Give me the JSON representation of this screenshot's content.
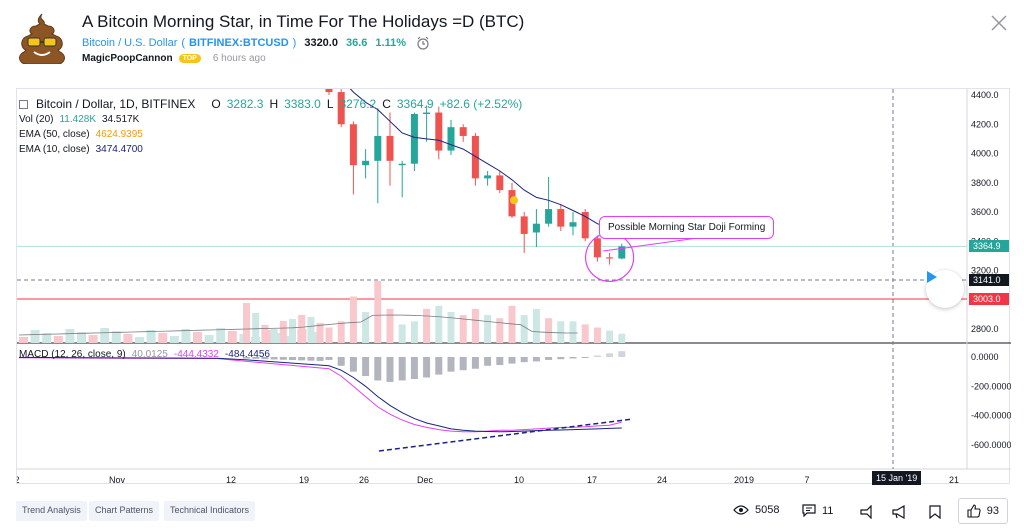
{
  "idea": {
    "title": "A Bitcoin Morning Star, in Time For The Holidays =D (BTC)",
    "symbol_name": "Bitcoin / U.S. Dollar",
    "symbol_ticker": "BITFINEX:BTCUSD",
    "symbol_open": "(",
    "symbol_close": ")",
    "price": "3320.0",
    "change": "36.6",
    "change_pct": "1.11%",
    "author": "MagicPoopCannon",
    "author_badge": "TOP",
    "published": "6 hours ago"
  },
  "legend": {
    "symbol": "Bitcoin / Dollar, 1D, BITFINEX",
    "o_label": "O",
    "o_value": "3282.3",
    "h_label": "H",
    "h_value": "3383.0",
    "l_label": "L",
    "l_value": "3276.2",
    "c_label": "C",
    "c_value": "3364.9",
    "change": "+82.6 (+2.52%)",
    "vol_label": "Vol (20)",
    "vol_v1": "11.428K",
    "vol_v2": "34.517K",
    "ema50_label": "EMA (50, close)",
    "ema50_value": "4624.9395",
    "ema10_label": "EMA (10, close)",
    "ema10_value": "3474.4700",
    "macd_label": "MACD (12, 26, close, 9)",
    "macd_v1": "40.0125",
    "macd_v2": "-444.4332",
    "macd_v3": "-484.4456"
  },
  "annotation": "Possible Morning Star Doji Forming",
  "price_tags": {
    "last": "3364.9",
    "dashed": "3141.0",
    "red": "3003.0"
  },
  "date_tag": "15 Jan '19",
  "chart_data": {
    "type": "candlestick",
    "price_axis_ticks": [
      4400,
      4200,
      4000,
      3800,
      3600,
      3400,
      3200,
      2800
    ],
    "price_axis_labels": [
      "4400.0",
      "4200.0",
      "4000.0",
      "3800.0",
      "3600.0",
      "3400.0",
      "3200.0",
      "2800.0"
    ],
    "macd_axis_ticks": [
      0,
      -200,
      -400,
      -600
    ],
    "macd_axis_labels": [
      "0.0000",
      "-200.0000",
      "-400.0000",
      "-600.0000"
    ],
    "x_axis_labels": [
      "2",
      "Nov",
      "12",
      "19",
      "26",
      "Dec",
      "10",
      "17",
      "24",
      "2019",
      "7",
      "15 Jan '19",
      "21"
    ],
    "candles": [
      {
        "o": 4480,
        "h": 4500,
        "l": 4400,
        "c": 4420
      },
      {
        "o": 4420,
        "h": 4440,
        "l": 4180,
        "c": 4200
      },
      {
        "o": 4200,
        "h": 4220,
        "l": 3720,
        "c": 3920
      },
      {
        "o": 3920,
        "h": 4030,
        "l": 3830,
        "c": 3950
      },
      {
        "o": 3950,
        "h": 4310,
        "l": 3660,
        "c": 4120
      },
      {
        "o": 4120,
        "h": 4280,
        "l": 3780,
        "c": 3950
      },
      {
        "o": 3920,
        "h": 3950,
        "l": 3700,
        "c": 3930
      },
      {
        "o": 3930,
        "h": 4280,
        "l": 3880,
        "c": 4270
      },
      {
        "o": 4270,
        "h": 4330,
        "l": 4080,
        "c": 4280
      },
      {
        "o": 4280,
        "h": 4320,
        "l": 3960,
        "c": 4020
      },
      {
        "o": 4020,
        "h": 4230,
        "l": 3990,
        "c": 4180
      },
      {
        "o": 4180,
        "h": 4200,
        "l": 4080,
        "c": 4120
      },
      {
        "o": 4120,
        "h": 4140,
        "l": 3780,
        "c": 3830
      },
      {
        "o": 3830,
        "h": 3880,
        "l": 3780,
        "c": 3850
      },
      {
        "o": 3850,
        "h": 3880,
        "l": 3730,
        "c": 3750
      },
      {
        "o": 3750,
        "h": 3800,
        "l": 3560,
        "c": 3570
      },
      {
        "o": 3570,
        "h": 3600,
        "l": 3320,
        "c": 3450
      },
      {
        "o": 3460,
        "h": 3620,
        "l": 3360,
        "c": 3520
      },
      {
        "o": 3520,
        "h": 3840,
        "l": 3500,
        "c": 3620
      },
      {
        "o": 3620,
        "h": 3650,
        "l": 3470,
        "c": 3500
      },
      {
        "o": 3500,
        "h": 3600,
        "l": 3440,
        "c": 3530
      },
      {
        "o": 3600,
        "h": 3620,
        "l": 3400,
        "c": 3420
      },
      {
        "o": 3420,
        "h": 3440,
        "l": 3260,
        "c": 3290
      },
      {
        "o": 3290,
        "h": 3320,
        "l": 3240,
        "c": 3282
      },
      {
        "o": 3282,
        "h": 3383,
        "l": 3276,
        "c": 3365
      }
    ],
    "ema10": [
      4550,
      4510,
      4420,
      4350,
      4300,
      4220,
      4140,
      4110,
      4100,
      4090,
      4060,
      4030,
      3980,
      3930,
      3880,
      3820,
      3750,
      3700,
      3680,
      3650,
      3610,
      3570,
      3520,
      3490,
      3474
    ],
    "volume": [
      0.25,
      0.35,
      0.75,
      0.5,
      1.0,
      0.55,
      0.3,
      0.35,
      0.55,
      0.6,
      0.5,
      0.45,
      0.55,
      0.45,
      0.4,
      0.6,
      0.45,
      0.55,
      0.4,
      0.35,
      0.35,
      0.3,
      0.25,
      0.2,
      0.15
    ],
    "volume_up": [
      false,
      false,
      false,
      true,
      false,
      false,
      true,
      true,
      false,
      true,
      true,
      false,
      false,
      true,
      false,
      false,
      true,
      true,
      false,
      true,
      true,
      false,
      false,
      true,
      true
    ],
    "macd_hist": [
      -20,
      -60,
      -100,
      -130,
      -160,
      -170,
      -160,
      -150,
      -140,
      -120,
      -100,
      -90,
      -80,
      -60,
      -55,
      -45,
      -35,
      -30,
      -20,
      -15,
      -10,
      -5,
      10,
      25,
      40
    ],
    "macd_line": [
      -80,
      -130,
      -200,
      -270,
      -340,
      -390,
      -430,
      -460,
      -480,
      -495,
      -505,
      -510,
      -510,
      -505,
      -500,
      -500,
      -495,
      -490,
      -485,
      -480,
      -480,
      -475,
      -470,
      -465,
      -444
    ],
    "signal_line": [
      -60,
      -90,
      -140,
      -200,
      -270,
      -330,
      -380,
      -420,
      -450,
      -470,
      -490,
      -500,
      -505,
      -508,
      -510,
      -508,
      -505,
      -502,
      -500,
      -498,
      -495,
      -492,
      -490,
      -487,
      -484
    ]
  },
  "footer": {
    "tags": [
      "Trend Analysis",
      "Chart Patterns",
      "Technical Indicators"
    ],
    "views": "5058",
    "comments": "11",
    "likes": "93"
  },
  "colors": {
    "up": "#26a69a",
    "down": "#ef5350",
    "ema10": "#1a237e",
    "macd": "#e040fb",
    "accent": "#2196f3"
  }
}
